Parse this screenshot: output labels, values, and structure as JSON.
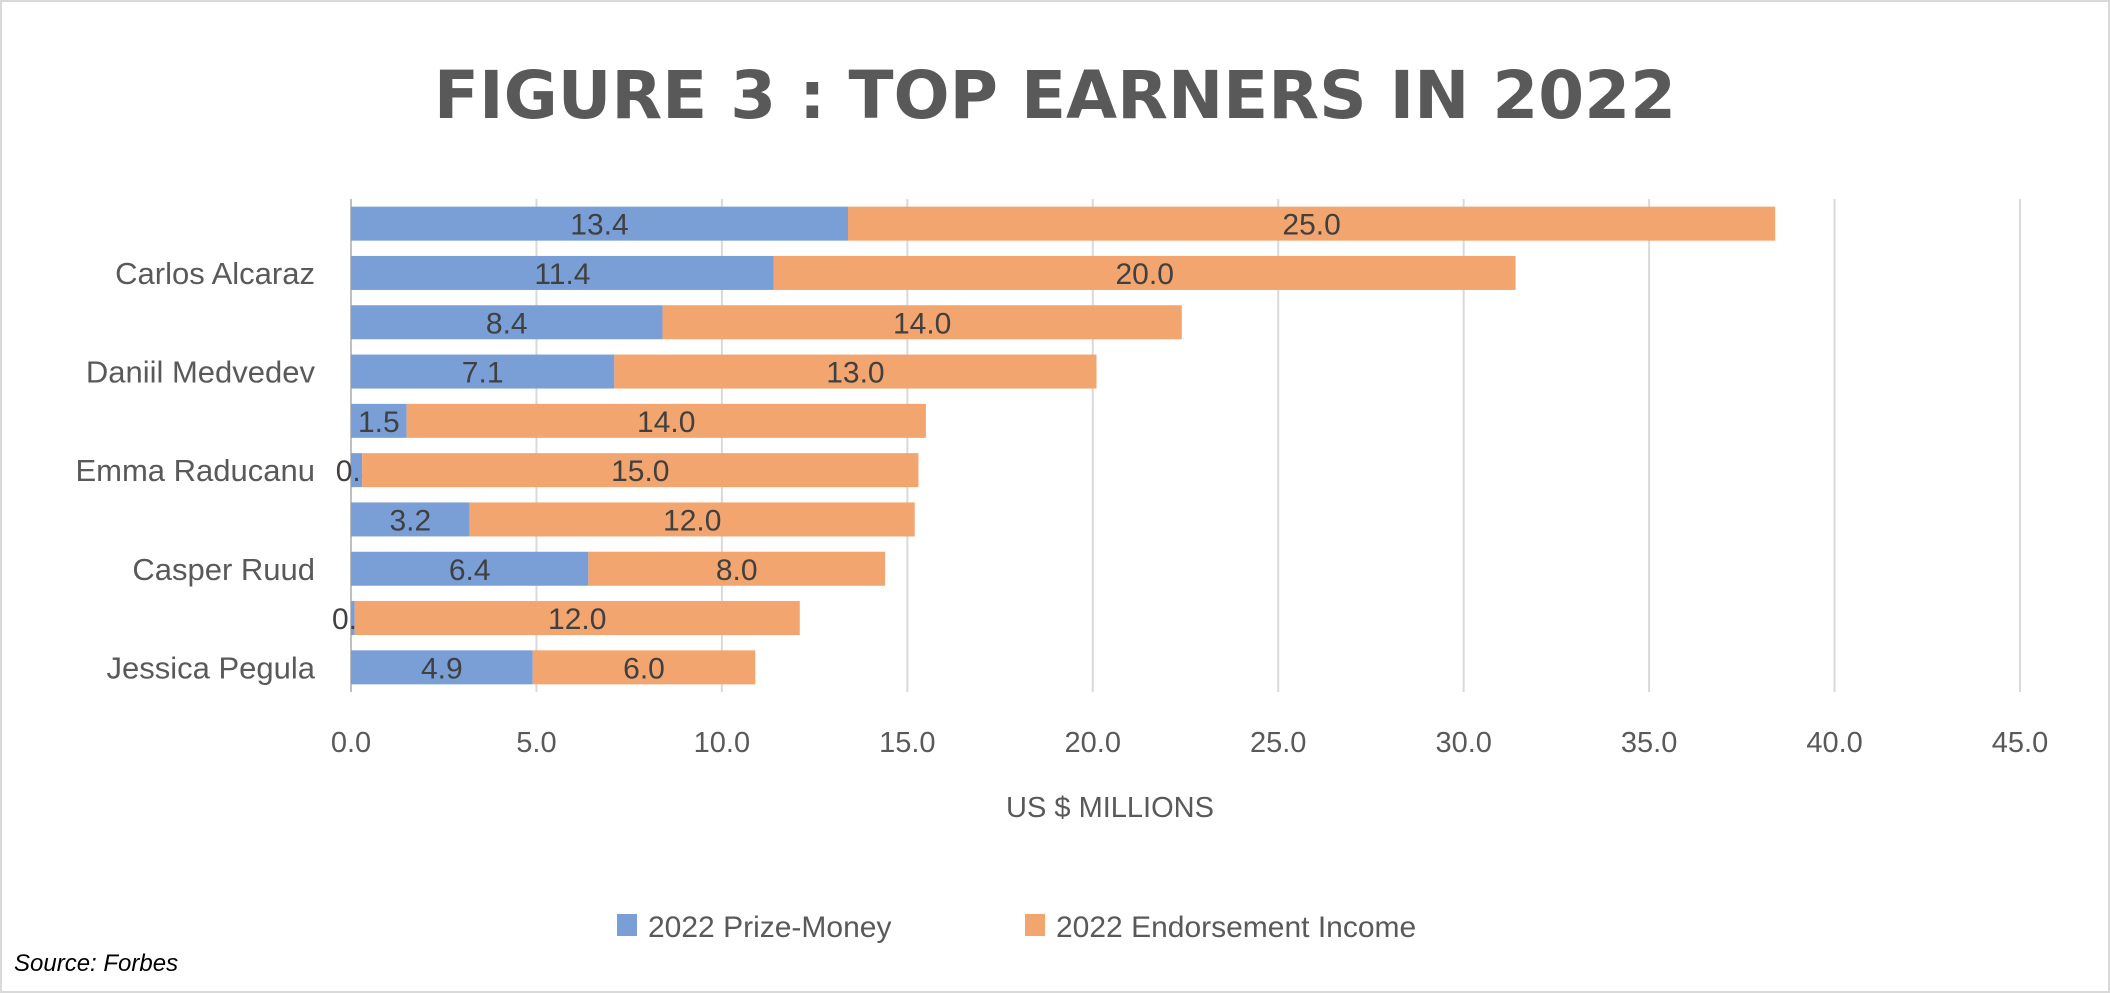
{
  "chart_data": {
    "type": "bar",
    "orientation": "horizontal",
    "stacked": true,
    "title": "FIGURE 3 : TOP EARNERS IN 2022",
    "xlabel": "US $ MILLIONS",
    "ylabel": "",
    "categories": [
      "",
      "Carlos Alcaraz",
      "",
      "Daniil Medvedev",
      "",
      "Emma Raducanu",
      "",
      "Casper Ruud",
      "",
      "Jessica Pegula"
    ],
    "series": [
      {
        "name": "2022 Prize-Money",
        "color": "#7a9fd6",
        "values": [
          13.4,
          11.4,
          8.4,
          7.1,
          1.5,
          0.3,
          3.2,
          6.4,
          0.1,
          4.9
        ]
      },
      {
        "name": "2022 Endorsement Income",
        "color": "#f2a56f",
        "values": [
          25.0,
          20.0,
          14.0,
          13.0,
          14.0,
          15.0,
          12.0,
          8.0,
          12.0,
          6.0
        ]
      }
    ],
    "xlim": [
      0,
      45
    ],
    "xticks": [
      "0.0",
      "5.0",
      "10.0",
      "15.0",
      "20.0",
      "25.0",
      "30.0",
      "35.0",
      "40.0",
      "45.0"
    ],
    "grid": true,
    "legend": "bottom",
    "data_labels": true
  },
  "source": "Source: Forbes"
}
